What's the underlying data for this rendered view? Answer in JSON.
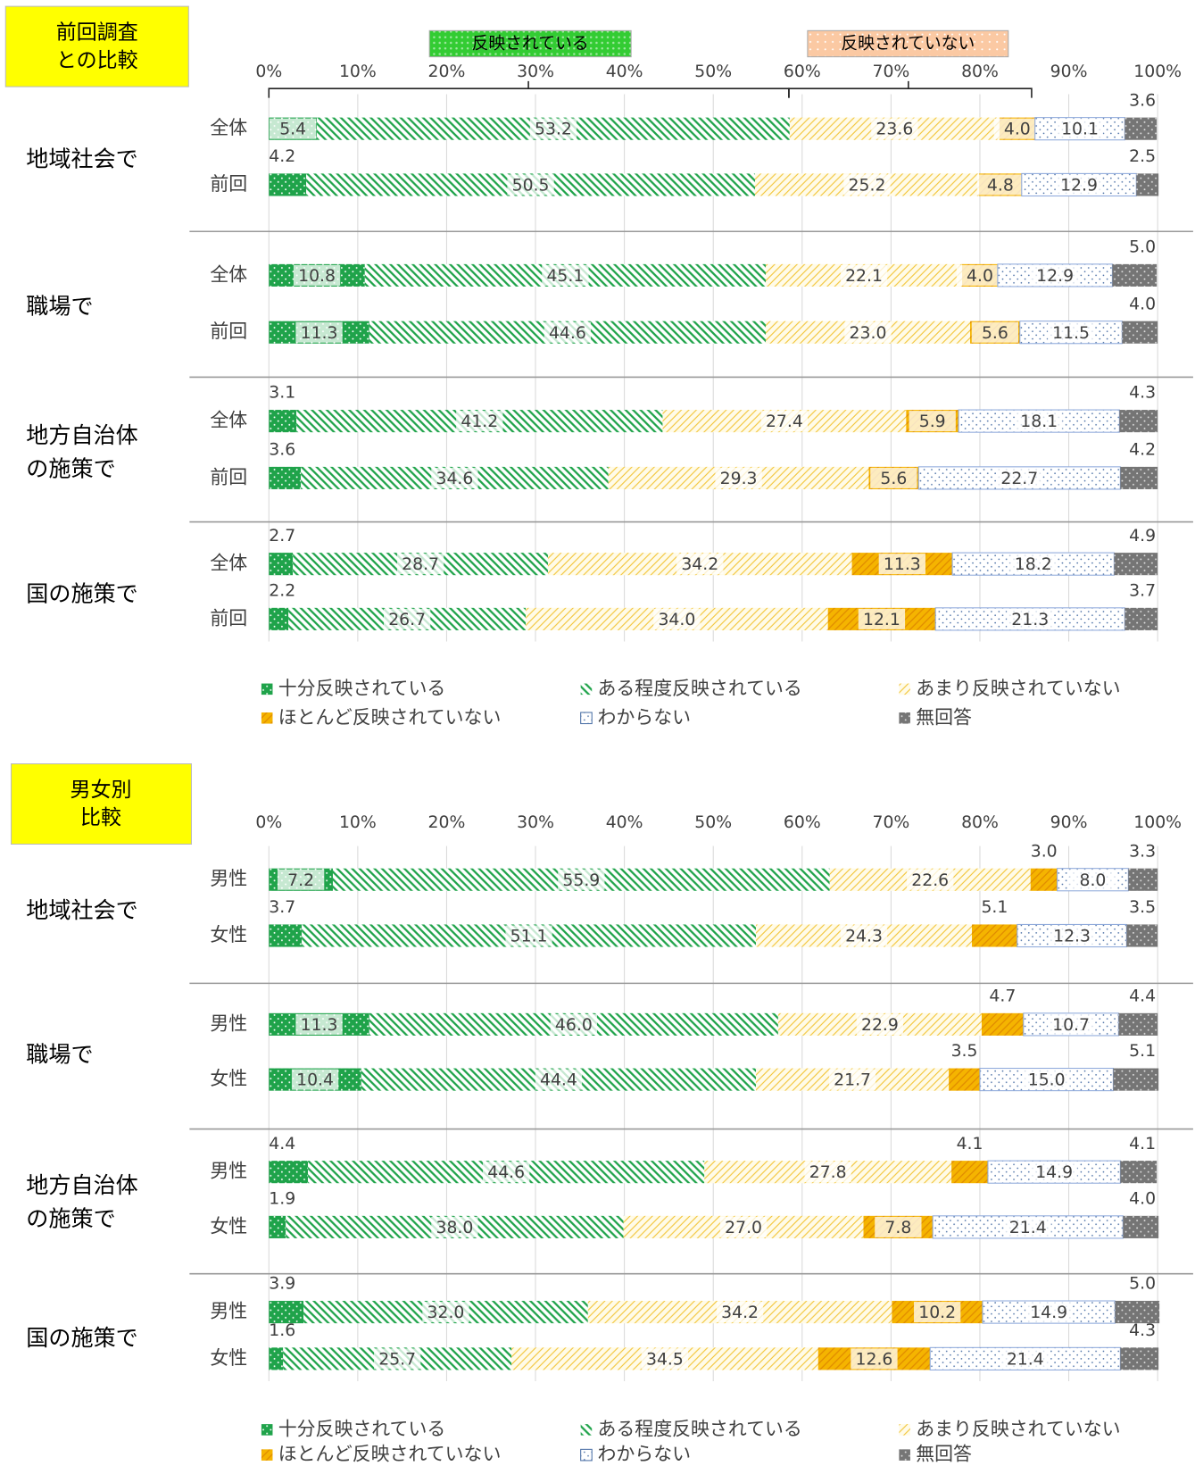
{
  "chart_data": [
    {
      "type": "stacked-bar-horizontal",
      "title": "前回調査\nとの比較",
      "bracket_labels": [
        "反映されている",
        "反映されていない"
      ],
      "groups": [
        "地域社会で",
        "職場で",
        "地方自治体\nの施策で",
        "国の施策で"
      ],
      "categories": [
        "全体",
        "前回",
        "全体",
        "前回",
        "全体",
        "前回",
        "全体",
        "前回"
      ],
      "xlim": [
        0,
        100
      ],
      "xticks": [
        {
          "value": 0,
          "label": "0%"
        },
        {
          "value": 10,
          "label": "10%"
        },
        {
          "value": 20,
          "label": "20%"
        },
        {
          "value": 30,
          "label": "30%"
        },
        {
          "value": 40,
          "label": "40%"
        },
        {
          "value": 50,
          "label": "50%"
        },
        {
          "value": 60,
          "label": "60%"
        },
        {
          "value": 70,
          "label": "70%"
        },
        {
          "value": 80,
          "label": "80%"
        },
        {
          "value": 90,
          "label": "90%"
        },
        {
          "value": 100,
          "label": "100%"
        }
      ],
      "series": [
        {
          "name": "十分反映されている",
          "color": "#1fa34a",
          "values": [
            5.4,
            4.2,
            10.8,
            11.3,
            3.1,
            3.6,
            2.7,
            2.2
          ],
          "value_labels": [
            "5.4",
            "4.2",
            "10.8",
            "11.3",
            "3.1",
            "3.6",
            "2.7",
            "2.2"
          ]
        },
        {
          "name": "ある程度反映されている",
          "color": "#1fa34a",
          "values": [
            53.2,
            50.5,
            45.1,
            44.6,
            41.2,
            34.6,
            28.7,
            26.7
          ],
          "value_labels": [
            "53.2",
            "50.5",
            "45.1",
            "44.6",
            "41.2",
            "34.6",
            "28.7",
            "26.7"
          ]
        },
        {
          "name": "あまり反映されていない",
          "color": "#f2c230",
          "values": [
            23.6,
            25.2,
            22.1,
            23.0,
            27.4,
            29.3,
            34.2,
            34.0
          ],
          "value_labels": [
            "23.6",
            "25.2",
            "22.1",
            "23.0",
            "27.4",
            "29.3",
            "34.2",
            "34.0"
          ]
        },
        {
          "name": "ほとんど反映されていない",
          "color": "#f5b400",
          "values": [
            4.0,
            4.8,
            4.0,
            5.6,
            5.9,
            5.6,
            11.3,
            12.1
          ],
          "value_labels": [
            "4.0",
            "4.8",
            "4.0",
            "5.6",
            "5.9",
            "5.6",
            "11.3",
            "12.1"
          ]
        },
        {
          "name": "わからない",
          "color": "#4a6fa5",
          "values": [
            10.1,
            12.9,
            12.9,
            11.5,
            18.1,
            22.7,
            18.2,
            21.3
          ],
          "value_labels": [
            "10.1",
            "12.9",
            "12.9",
            "11.5",
            "18.1",
            "22.7",
            "18.2",
            "21.3"
          ]
        },
        {
          "name": "無回答",
          "color": "#757575",
          "values": [
            3.6,
            2.5,
            5.0,
            4.0,
            4.3,
            4.2,
            4.9,
            3.7
          ],
          "value_labels": [
            "3.6",
            "2.5",
            "5.0",
            "4.0",
            "4.3",
            "4.2",
            "4.9",
            "3.7"
          ]
        }
      ]
    },
    {
      "type": "stacked-bar-horizontal",
      "title": "男女別\n比較",
      "groups": [
        "地域社会で",
        "職場で",
        "地方自治体\nの施策で",
        "国の施策で"
      ],
      "categories": [
        "男性",
        "女性",
        "男性",
        "女性",
        "男性",
        "女性",
        "男性",
        "女性"
      ],
      "xlim": [
        0,
        100
      ],
      "xticks": [
        {
          "value": 0,
          "label": "0%"
        },
        {
          "value": 10,
          "label": "10%"
        },
        {
          "value": 20,
          "label": "20%"
        },
        {
          "value": 30,
          "label": "30%"
        },
        {
          "value": 40,
          "label": "40%"
        },
        {
          "value": 50,
          "label": "50%"
        },
        {
          "value": 60,
          "label": "60%"
        },
        {
          "value": 70,
          "label": "70%"
        },
        {
          "value": 80,
          "label": "80%"
        },
        {
          "value": 90,
          "label": "90%"
        },
        {
          "value": 100,
          "label": "100%"
        }
      ],
      "series": [
        {
          "name": "十分反映されている",
          "color": "#1fa34a",
          "values": [
            7.2,
            3.7,
            11.3,
            10.4,
            4.4,
            1.9,
            3.9,
            1.6
          ],
          "value_labels": [
            "7.2",
            "3.7",
            "11.3",
            "10.4",
            "4.4",
            "1.9",
            "3.9",
            "1.6"
          ]
        },
        {
          "name": "ある程度反映されている",
          "color": "#1fa34a",
          "values": [
            55.9,
            51.1,
            46.0,
            44.4,
            44.6,
            38.0,
            32.0,
            25.7
          ],
          "value_labels": [
            "55.9",
            "51.1",
            "46.0",
            "44.4",
            "44.6",
            "38.0",
            "32.0",
            "25.7"
          ]
        },
        {
          "name": "あまり反映されていない",
          "color": "#f2c230",
          "values": [
            22.6,
            24.3,
            22.9,
            21.7,
            27.8,
            27.0,
            34.2,
            34.5
          ],
          "value_labels": [
            "22.6",
            "24.3",
            "22.9",
            "21.7",
            "27.8",
            "27.0",
            "34.2",
            "34.5"
          ]
        },
        {
          "name": "ほとんど反映されていない",
          "color": "#f5b400",
          "values": [
            3.0,
            5.1,
            4.7,
            3.5,
            4.1,
            7.8,
            10.2,
            12.6
          ],
          "value_labels": [
            "3.0",
            "5.1",
            "4.7",
            "3.5",
            "4.1",
            "7.8",
            "10.2",
            "12.6"
          ]
        },
        {
          "name": "わからない",
          "color": "#4a6fa5",
          "values": [
            8.0,
            12.3,
            10.7,
            15.0,
            14.9,
            21.4,
            14.9,
            21.4
          ],
          "value_labels": [
            "8.0",
            "12.3",
            "10.7",
            "15.0",
            "14.9",
            "21.4",
            "14.9",
            "21.4"
          ]
        },
        {
          "name": "無回答",
          "color": "#757575",
          "values": [
            3.3,
            3.5,
            4.4,
            5.1,
            4.1,
            4.0,
            5.0,
            4.3
          ],
          "value_labels": [
            "3.3",
            "3.5",
            "4.4",
            "5.1",
            "4.1",
            "4.0",
            "5.0",
            "4.3"
          ]
        }
      ]
    }
  ]
}
